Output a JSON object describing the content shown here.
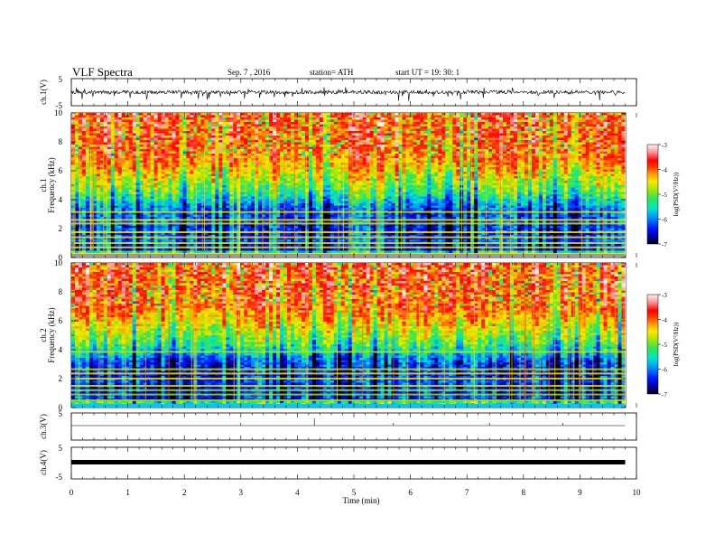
{
  "header": {
    "title": "VLF  Spectra",
    "date": "Sep. 7  , 2016",
    "station": "station= ATH",
    "start": "start  UT  =    19: 30: 1"
  },
  "chart_data": [
    {
      "type": "line",
      "ylabel": "ch.1(V)",
      "ylim": [
        -5,
        5
      ],
      "yticks": [
        "5",
        "-5"
      ],
      "description_level": "noisy waveform around -1 V with spikes to about +1 and -3 V"
    },
    {
      "type": "heatmap",
      "ylabel_channel": "ch.1",
      "ylabel": "Frequency  (kHz)",
      "ylim": [
        0,
        10
      ],
      "yticks": [
        "0",
        "2",
        "4",
        "6",
        "8",
        "10"
      ],
      "colorbar": {
        "label": "log(PSD(V²/Hz))",
        "ticks": [
          "-3",
          "-4",
          "-5",
          "-6",
          "-7"
        ],
        "range": [
          -7,
          -3
        ],
        "colors": [
          "#000000",
          "#0000cc",
          "#0050ff",
          "#00c8ff",
          "#00e6a0",
          "#40e640",
          "#c8e600",
          "#ffe600",
          "#ffa000",
          "#ff3c00",
          "#ff0000",
          "#ff8c8c",
          "#ffe6e6"
        ]
      },
      "bands_khz": [
        0.25,
        0.7,
        1.0,
        1.4,
        1.75,
        2.35,
        2.6,
        3.15
      ]
    },
    {
      "type": "heatmap",
      "ylabel_channel": "ch.2",
      "ylabel": "Frequency  (kHz)",
      "ylim": [
        0,
        10
      ],
      "yticks": [
        "0",
        "2",
        "4",
        "6",
        "8",
        "10"
      ],
      "colorbar": {
        "label": "log(PSD(V²/Hz))",
        "ticks": [
          "-3",
          "-4",
          "-5",
          "-6",
          "-7"
        ],
        "range": [
          -7,
          -3
        ]
      },
      "bands_khz": [
        0.5,
        0.9,
        1.2,
        1.5,
        2.0,
        2.35,
        2.65,
        3.85
      ]
    },
    {
      "type": "line",
      "ylabel": "ch.3(V)",
      "ylim": [
        -5,
        5
      ],
      "yticks": [
        "5"
      ],
      "level": 0
    },
    {
      "type": "line",
      "ylabel": "ch.4(V)",
      "ylim": [
        -5,
        5
      ],
      "yticks": [
        "5",
        "-5"
      ],
      "level": 0
    }
  ],
  "xaxis": {
    "label": "Time  (min)",
    "ticks": [
      "0",
      "1",
      "2",
      "3",
      "4",
      "5",
      "6",
      "7",
      "8",
      "9",
      "10"
    ],
    "xlim": [
      0,
      10
    ],
    "data_end_min": 9.8
  }
}
